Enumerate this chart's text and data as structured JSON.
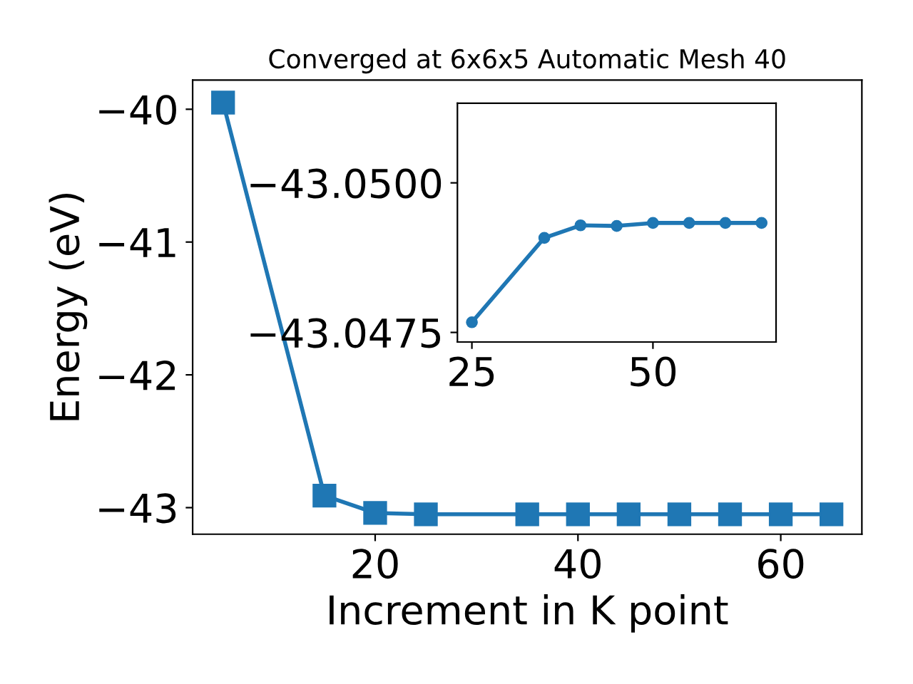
{
  "chart_data": [
    {
      "type": "line",
      "title": "Converged at 6x6x5 Automatic Mesh 40",
      "xlabel": "Increment in K point",
      "ylabel": "Energy (eV)",
      "x": [
        5,
        15,
        20,
        25,
        35,
        40,
        45,
        50,
        55,
        60,
        65
      ],
      "series": [
        {
          "color": "#1f77b4",
          "values": [
            -39.95,
            -42.91,
            -43.04,
            -43.05,
            -43.05,
            -43.05,
            -43.05,
            -43.05,
            -43.05,
            -43.05,
            -43.05
          ]
        }
      ],
      "xlim": [
        2,
        68
      ],
      "ylim": [
        -43.2,
        -39.78
      ],
      "xticks": [
        20,
        40,
        60
      ],
      "yticks": [
        {
          "value": -40,
          "label": "−40"
        },
        {
          "value": -41,
          "label": "−41"
        },
        {
          "value": -42,
          "label": "−42"
        },
        {
          "value": -43,
          "label": "−43"
        }
      ],
      "marker": "square",
      "line_style": "solid",
      "grid": false,
      "legend": false
    },
    {
      "type": "line",
      "x": [
        25,
        35,
        40,
        45,
        50,
        55,
        60,
        65
      ],
      "series": [
        {
          "color": "#1f77b4",
          "values": [
            -43.04767,
            -43.04908,
            -43.04929,
            -43.04928,
            -43.04933,
            -43.04933,
            -43.04933,
            -43.04933
          ]
        }
      ],
      "xlim": [
        23,
        67
      ],
      "ylim": [
        -43.04734,
        -43.05133
      ],
      "xticks": [
        25,
        50
      ],
      "yticks": [
        {
          "value": -43.05,
          "label": "−43.0500"
        },
        {
          "value": -43.0475,
          "label": "−43.0475"
        }
      ],
      "marker": "circle",
      "line_style": "solid",
      "grid": false,
      "legend": false
    }
  ]
}
